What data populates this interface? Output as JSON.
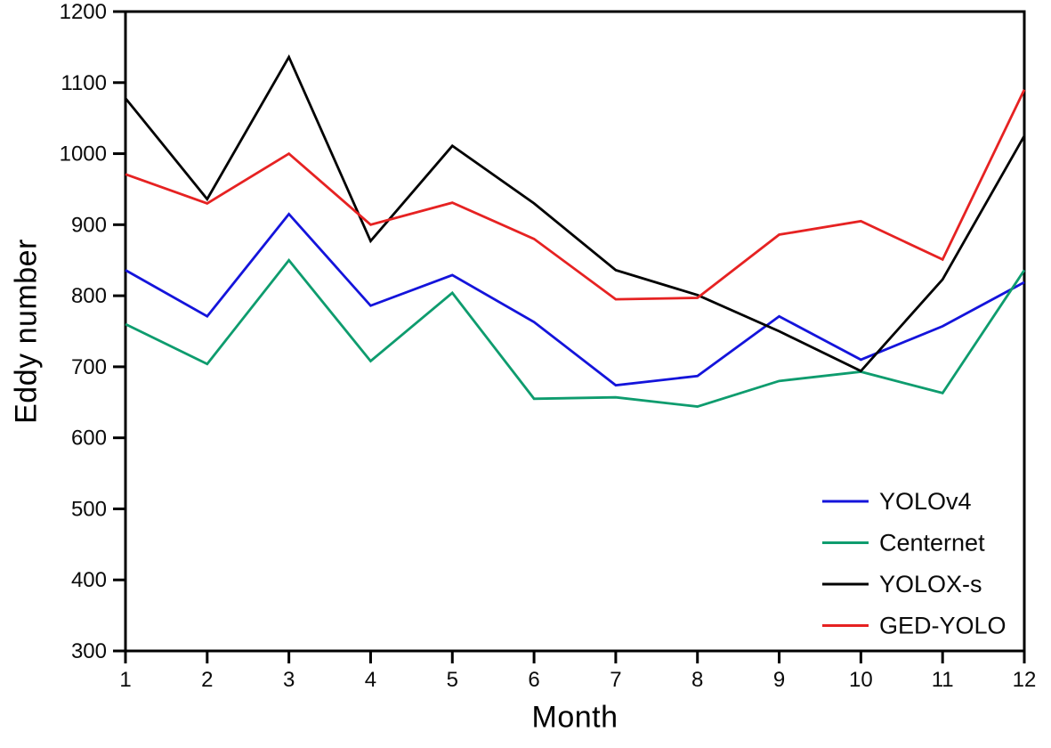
{
  "figure": {
    "background": "#ffffff",
    "axis_color": "#000000"
  },
  "chart_data": {
    "type": "line",
    "title": "",
    "xlabel": "Month",
    "ylabel": "Eddy number",
    "x": [
      1,
      2,
      3,
      4,
      5,
      6,
      7,
      8,
      9,
      10,
      11,
      12
    ],
    "x_ticks": [
      "1",
      "2",
      "3",
      "4",
      "5",
      "6",
      "7",
      "8",
      "9",
      "10",
      "11",
      "12"
    ],
    "y_ticks": [
      300,
      400,
      500,
      600,
      700,
      800,
      900,
      1000,
      1100,
      1200
    ],
    "xlim": [
      1,
      12
    ],
    "ylim": [
      300,
      1200
    ],
    "grid": false,
    "legend_position": "lower right",
    "series": [
      {
        "name": "YOLOv4",
        "color": "#1414db",
        "values": [
          836,
          771,
          915,
          786,
          829,
          763,
          674,
          687,
          771,
          710,
          757,
          819
        ]
      },
      {
        "name": "Centernet",
        "color": "#0e9c6e",
        "values": [
          760,
          704,
          850,
          708,
          804,
          655,
          657,
          644,
          680,
          693,
          663,
          836
        ]
      },
      {
        "name": "YOLOX-s",
        "color": "#000000",
        "values": [
          1078,
          936,
          1136,
          877,
          1011,
          930,
          836,
          801,
          750,
          694,
          823,
          1025
        ]
      },
      {
        "name": "GED-YOLO",
        "color": "#e62222",
        "values": [
          971,
          930,
          1000,
          900,
          931,
          880,
          795,
          797,
          886,
          905,
          851,
          1090
        ]
      }
    ]
  }
}
